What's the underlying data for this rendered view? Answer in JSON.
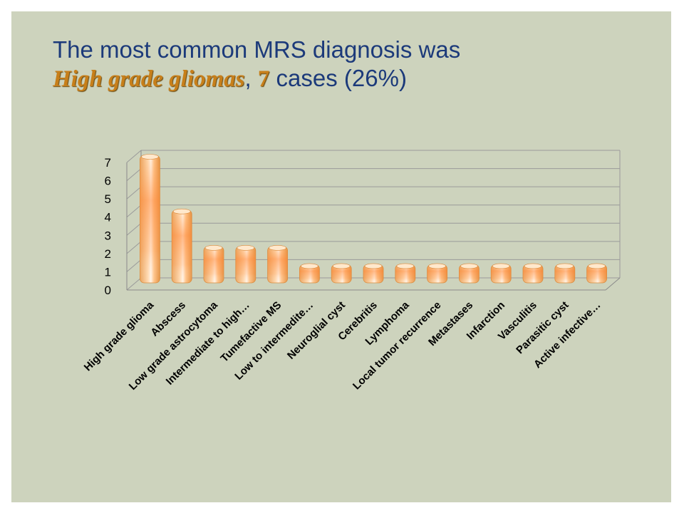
{
  "title": {
    "line1": "The most common MRS diagnosis was",
    "highlight": "High grade gliomas",
    "sep": ", ",
    "count": "7",
    "rest": " cases (26%)"
  },
  "chart_data": {
    "type": "bar",
    "categories": [
      "High grade glioma",
      "Abscess",
      "Low grade astrocytoma",
      "Intermediate to high…",
      "Tumefactive MS",
      "Low to intermedite…",
      "Neuroglial cyst",
      "Cerebritis",
      "Lymphoma",
      "Local tumor recurrence",
      "Metastases",
      "Infarction",
      "Vasculitis",
      "Parasitic cyst",
      "Active infective…"
    ],
    "values": [
      7,
      4,
      2,
      2,
      2,
      1,
      1,
      1,
      1,
      1,
      1,
      1,
      1,
      1,
      1
    ],
    "yticks": [
      "0",
      "1",
      "2",
      "3",
      "4",
      "5",
      "6",
      "7"
    ],
    "ylim": [
      0,
      7
    ],
    "grid": true,
    "legend": "none",
    "title": "",
    "xlabel": "",
    "ylabel": "",
    "colors": {
      "bar_edge": "#e8a050",
      "bar_center": "#ff8a3c",
      "bar_light": "#fff2e6",
      "grid": "#8a8a8a"
    }
  }
}
